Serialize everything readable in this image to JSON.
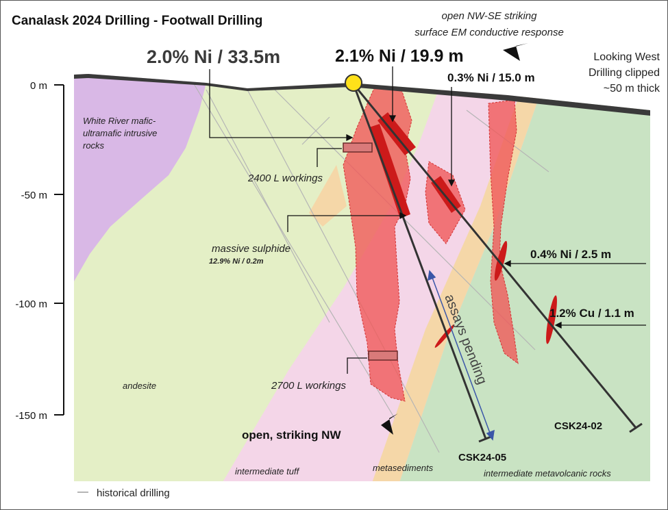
{
  "title": "Canalask 2024 Drilling - Footwall Drilling",
  "em_note": {
    "line1": "open NW-SE striking",
    "line2": "surface EM conductive response"
  },
  "view_note": {
    "line1": "Looking West",
    "line2": "Drilling clipped",
    "line3": "~50 m thick"
  },
  "depth_axis": {
    "labels": [
      "0 m",
      "-50 m",
      "-100 m",
      "-150 m"
    ],
    "values": [
      0,
      -50,
      -100,
      -150
    ]
  },
  "callouts": {
    "ni_33": "2.0% Ni / 33.5m",
    "ni_19": "2.1% Ni / 19.9 m",
    "ni_15": "0.3% Ni / 15.0 m",
    "ni_2_5": "0.4% Ni / 2.5 m",
    "cu_1_1": "1.2% Cu / 1.1 m"
  },
  "labels": {
    "workings_2400": "2400 L workings",
    "workings_2700": "2700 L workings",
    "massive_sulphide": "massive sulphide",
    "massive_sulphide_grade": "12.9% Ni / 0.2m",
    "assays_pending": "assays pending",
    "open_striking": "open, striking NW"
  },
  "units": {
    "white_river": [
      "White River mafic-",
      "ultramafic intrusive",
      "rocks"
    ],
    "andesite": "andesite",
    "intermediate_tuff": "intermediate tuff",
    "metasediments": "metasediments",
    "intermediate_metavolcanic": "intermediate metavolcanic rocks"
  },
  "holes": {
    "csk24_05": "CSK24-05",
    "csk24_02": "CSK24-02"
  },
  "legend": {
    "historical_drilling": "historical drilling"
  },
  "colors": {
    "purple_unit": "#d9b8e6",
    "andesite": "#e4efc6",
    "tuff": "#f4d6e8",
    "metasediments": "#f5d7a8",
    "metavolcanic": "#c9e3c3",
    "mineralization": "#f05a5a",
    "ore_dark": "#cc1a1a",
    "drill_line": "#333333",
    "assay_arrow": "#3a56a8"
  }
}
